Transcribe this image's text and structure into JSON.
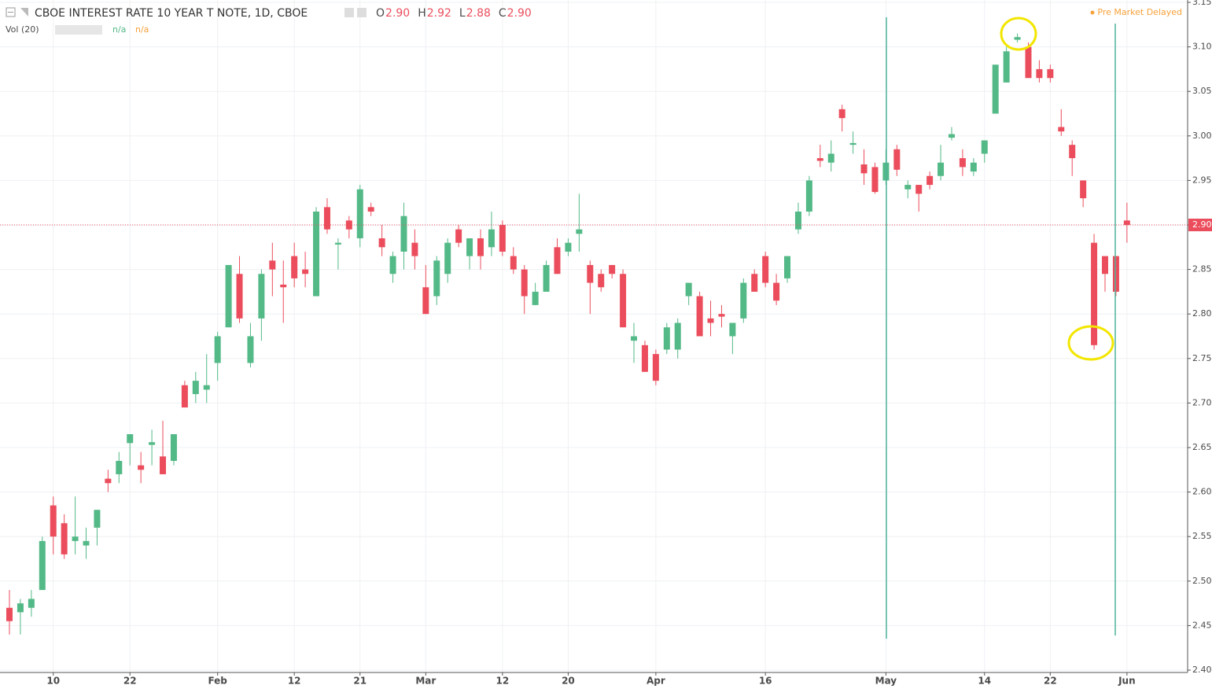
{
  "header": {
    "title": "CBOE INTEREST RATE 10 YEAR T NOTE, 1D, CBOE",
    "ohlc": [
      {
        "label": "O",
        "value": "2.90"
      },
      {
        "label": "H",
        "value": "2.92"
      },
      {
        "label": "L",
        "value": "2.88"
      },
      {
        "label": "C",
        "value": "2.90"
      }
    ],
    "indicator": "Vol (20)",
    "indicator_values": [
      "n/a",
      "n/a"
    ],
    "status": "Pre Market Delayed"
  },
  "chart_data": {
    "type": "candlestick",
    "x": [
      "Jan 4",
      "Jan 5",
      "Jan 8",
      "Jan 9",
      "Jan 10",
      "Jan 11",
      "Jan 12",
      "Jan 16",
      "Jan 17",
      "Jan 18",
      "Jan 19",
      "Jan 22",
      "Jan 23",
      "Jan 24",
      "Jan 25",
      "Jan 26",
      "Jan 29",
      "Jan 30",
      "Jan 31",
      "Feb 1",
      "Feb 2",
      "Feb 5",
      "Feb 6",
      "Feb 7",
      "Feb 8",
      "Feb 9",
      "Feb 12",
      "Feb 13",
      "Feb 14",
      "Feb 15",
      "Feb 16",
      "Feb 20",
      "Feb 21",
      "Feb 22",
      "Feb 23",
      "Feb 26",
      "Feb 27",
      "Feb 28",
      "Mar 1",
      "Mar 2",
      "Mar 5",
      "Mar 6",
      "Mar 7",
      "Mar 8",
      "Mar 9",
      "Mar 12",
      "Mar 13",
      "Mar 14",
      "Mar 15",
      "Mar 16",
      "Mar 19",
      "Mar 20",
      "Mar 21",
      "Mar 22",
      "Mar 23",
      "Mar 26",
      "Mar 27",
      "Mar 28",
      "Mar 29",
      "Apr 2",
      "Apr 3",
      "Apr 4",
      "Apr 5",
      "Apr 6",
      "Apr 9",
      "Apr 10",
      "Apr 11",
      "Apr 12",
      "Apr 13",
      "Apr 16",
      "Apr 17",
      "Apr 18",
      "Apr 19",
      "Apr 20",
      "Apr 23",
      "Apr 24",
      "Apr 25",
      "Apr 26",
      "Apr 27",
      "Apr 30",
      "May 1",
      "May 2",
      "May 3",
      "May 4",
      "May 7",
      "May 8",
      "May 9",
      "May 10",
      "May 11",
      "May 14",
      "May 15",
      "May 16",
      "May 17",
      "May 18",
      "May 21",
      "May 22",
      "May 23",
      "May 24",
      "May 25",
      "May 29",
      "May 30",
      "May 31",
      "Jun 1"
    ],
    "open": [
      2.47,
      2.465,
      2.47,
      2.49,
      2.585,
      2.565,
      2.545,
      2.54,
      2.56,
      2.615,
      2.62,
      2.655,
      2.63,
      2.653,
      2.64,
      2.635,
      2.72,
      2.71,
      2.715,
      2.745,
      2.785,
      2.845,
      2.745,
      2.795,
      2.86,
      2.833,
      2.865,
      2.85,
      2.82,
      2.92,
      2.878,
      2.905,
      2.885,
      2.92,
      2.885,
      2.845,
      2.87,
      2.88,
      2.83,
      2.82,
      2.845,
      2.895,
      2.865,
      2.885,
      2.875,
      2.9,
      2.865,
      2.85,
      2.81,
      2.825,
      2.875,
      2.87,
      2.89,
      2.855,
      2.845,
      2.855,
      2.845,
      2.77,
      2.765,
      2.755,
      2.76,
      2.76,
      2.82,
      2.82,
      2.795,
      2.8,
      2.775,
      2.795,
      2.845,
      2.865,
      2.835,
      2.84,
      2.895,
      2.915,
      2.975,
      2.97,
      3.03,
      2.99,
      2.968,
      2.965,
      2.95,
      2.985,
      2.94,
      2.945,
      2.955,
      2.955,
      2.998,
      2.975,
      2.96,
      2.98,
      3.025,
      3.06,
      3.108,
      3.1,
      3.075,
      3.075,
      3.01,
      2.99,
      2.95,
      2.88,
      2.865,
      2.865,
      2.905
    ],
    "high": [
      2.49,
      2.48,
      2.49,
      2.55,
      2.595,
      2.575,
      2.595,
      2.56,
      2.58,
      2.625,
      2.645,
      2.665,
      2.645,
      2.67,
      2.68,
      2.665,
      2.725,
      2.735,
      2.755,
      2.78,
      2.855,
      2.865,
      2.79,
      2.85,
      2.88,
      2.86,
      2.88,
      2.87,
      2.92,
      2.93,
      2.885,
      2.91,
      2.945,
      2.925,
      2.9,
      2.87,
      2.925,
      2.895,
      2.855,
      2.865,
      2.885,
      2.9,
      2.885,
      2.895,
      2.915,
      2.905,
      2.875,
      2.855,
      2.835,
      2.86,
      2.885,
      2.885,
      2.935,
      2.86,
      2.85,
      2.855,
      2.85,
      2.79,
      2.77,
      2.76,
      2.79,
      2.795,
      2.835,
      2.825,
      2.815,
      2.81,
      2.785,
      2.84,
      2.85,
      2.87,
      2.845,
      2.865,
      2.925,
      2.955,
      2.99,
      2.995,
      3.035,
      3.005,
      2.985,
      2.97,
      2.985,
      2.99,
      2.95,
      2.945,
      2.96,
      2.99,
      3.01,
      2.985,
      2.975,
      2.995,
      3.08,
      3.1,
      3.115,
      3.105,
      3.085,
      3.08,
      3.03,
      2.995,
      2.95,
      2.89,
      2.865,
      2.865,
      2.925
    ],
    "low": [
      2.44,
      2.44,
      2.46,
      2.49,
      2.53,
      2.525,
      2.53,
      2.525,
      2.54,
      2.6,
      2.61,
      2.63,
      2.61,
      2.63,
      2.62,
      2.63,
      2.695,
      2.7,
      2.7,
      2.725,
      2.785,
      2.79,
      2.74,
      2.77,
      2.82,
      2.79,
      2.83,
      2.83,
      2.82,
      2.89,
      2.85,
      2.885,
      2.875,
      2.91,
      2.865,
      2.835,
      2.85,
      2.85,
      2.8,
      2.81,
      2.835,
      2.875,
      2.85,
      2.85,
      2.865,
      2.865,
      2.845,
      2.8,
      2.81,
      2.825,
      2.845,
      2.865,
      2.87,
      2.8,
      2.825,
      2.84,
      2.785,
      2.745,
      2.735,
      2.72,
      2.755,
      2.75,
      2.81,
      2.775,
      2.775,
      2.785,
      2.755,
      2.79,
      2.825,
      2.83,
      2.81,
      2.835,
      2.89,
      2.91,
      2.965,
      2.96,
      3.005,
      2.98,
      2.945,
      2.935,
      2.945,
      2.955,
      2.93,
      2.915,
      2.94,
      2.95,
      2.995,
      2.955,
      2.955,
      2.97,
      3.025,
      3.06,
      3.105,
      3.065,
      3.06,
      3.06,
      3.0,
      2.955,
      2.92,
      2.76,
      2.825,
      2.82,
      2.88
    ],
    "close": [
      2.455,
      2.475,
      2.48,
      2.545,
      2.55,
      2.53,
      2.55,
      2.545,
      2.58,
      2.61,
      2.635,
      2.665,
      2.625,
      2.656,
      2.62,
      2.665,
      2.695,
      2.725,
      2.72,
      2.775,
      2.855,
      2.795,
      2.775,
      2.845,
      2.85,
      2.83,
      2.84,
      2.845,
      2.915,
      2.895,
      2.88,
      2.895,
      2.94,
      2.915,
      2.875,
      2.865,
      2.91,
      2.865,
      2.8,
      2.86,
      2.88,
      2.88,
      2.885,
      2.865,
      2.895,
      2.87,
      2.85,
      2.82,
      2.825,
      2.855,
      2.845,
      2.88,
      2.895,
      2.835,
      2.83,
      2.845,
      2.785,
      2.775,
      2.735,
      2.725,
      2.785,
      2.79,
      2.835,
      2.775,
      2.79,
      2.797,
      2.79,
      2.835,
      2.825,
      2.835,
      2.815,
      2.865,
      2.915,
      2.95,
      2.972,
      2.98,
      3.02,
      2.992,
      2.958,
      2.937,
      2.97,
      2.962,
      2.945,
      2.935,
      2.945,
      2.97,
      3.002,
      2.965,
      2.97,
      2.995,
      3.08,
      3.095,
      3.111,
      3.065,
      3.065,
      3.065,
      3.005,
      2.975,
      2.93,
      2.765,
      2.845,
      2.825,
      2.9
    ],
    "up_color": "#53b987",
    "down_color": "#eb4d5c",
    "ylim": [
      2.4,
      3.15
    ],
    "yticks": [
      {
        "value": 2.4,
        "label": "2.40"
      },
      2.45,
      {
        "value": 2.5,
        "label": "2.50"
      },
      2.55,
      {
        "value": 2.6,
        "label": "2.60"
      },
      2.65,
      {
        "value": 2.7,
        "label": "2.70"
      },
      2.75,
      {
        "value": 2.8,
        "label": "2.80"
      },
      2.85,
      {
        "value": 2.9,
        "label": "2.90"
      },
      2.95,
      {
        "value": 3.0,
        "label": "3.00"
      },
      3.05,
      {
        "value": 3.1,
        "label": "3.10"
      },
      3.15
    ],
    "xticks": [
      {
        "value": "Jan 10",
        "label": "10"
      },
      {
        "value": "Jan 22",
        "label": "22"
      },
      {
        "value": "Feb 1",
        "label": "Feb"
      },
      {
        "value": "Feb 12",
        "label": "12"
      },
      {
        "value": "Feb 21",
        "label": "21"
      },
      {
        "value": "Mar 1",
        "label": "Mar"
      },
      {
        "value": "Mar 12",
        "label": "12"
      },
      {
        "value": "Mar 20",
        "label": "20"
      },
      {
        "value": "Apr 2",
        "label": "Apr"
      },
      {
        "value": "Apr 16",
        "label": "16"
      },
      {
        "value": "May 1",
        "label": "May"
      },
      {
        "value": "May 14",
        "label": "14"
      },
      {
        "value": "May 22",
        "label": "22"
      },
      {
        "value": "Jun 1",
        "label": "Jun"
      }
    ],
    "last_price": {
      "value": 2.9,
      "label": "2.90"
    },
    "grid": true
  }
}
